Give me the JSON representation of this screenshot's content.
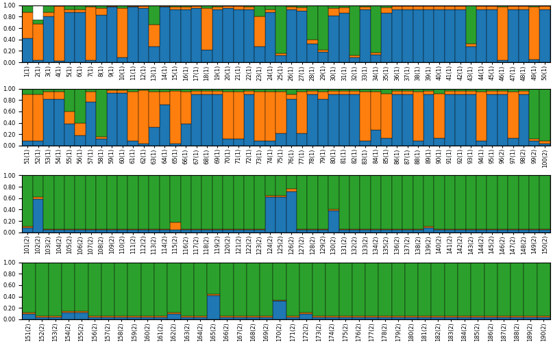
{
  "chart_data": [
    {
      "type": "bar",
      "stacked": true,
      "grid": false,
      "categories": [
        "1(1)",
        "2(1)",
        "3(1)",
        "4(1)",
        "5(1)",
        "6(1)",
        "7(1)",
        "8(1)",
        "9(1)",
        "10(1)",
        "11(1)",
        "12(1)",
        "13(1)",
        "14(1)",
        "15(1)",
        "16(1)",
        "17(1)",
        "18(1)",
        "19(1)",
        "20(1)",
        "21(1)",
        "22(1)",
        "23(1)",
        "24(1)",
        "25(1)",
        "26(1)",
        "27(1)",
        "28(1)",
        "29(1)",
        "30(1)",
        "31(1)",
        "32(1)",
        "33(1)",
        "34(1)",
        "35(1)",
        "36(1)",
        "37(1)",
        "38(1)",
        "39(1)",
        "40(1)",
        "41(1)",
        "42(1)",
        "43(1)",
        "44(1)",
        "45(1)",
        "46(1)",
        "47(1)",
        "48(1)",
        "49(1)",
        "50(1)"
      ],
      "series": [
        {
          "values": [
            0.42,
            0.04,
            0.8,
            0.03,
            0.88,
            0.88,
            0.04,
            0.83,
            0.97,
            0.08,
            0.97,
            0.95,
            0.28,
            0.97,
            0.93,
            0.93,
            0.95,
            0.22,
            0.93,
            0.95,
            0.92,
            0.92,
            0.28,
            0.88,
            0.12,
            0.92,
            0.9,
            0.32,
            0.18,
            0.82,
            0.87,
            0.08,
            0.92,
            0.13,
            0.87,
            0.93,
            0.93,
            0.93,
            0.93,
            0.93,
            0.93,
            0.93,
            0.28,
            0.93,
            0.93,
            0.04,
            0.93,
            0.93,
            0.05,
            0.93
          ]
        },
        {
          "values": [
            0.46,
            0.63,
            0.08,
            0.95,
            0.05,
            0.05,
            0.93,
            0.12,
            0.02,
            0.87,
            0.02,
            0.03,
            0.38,
            0.02,
            0.04,
            0.04,
            0.03,
            0.73,
            0.04,
            0.03,
            0.06,
            0.05,
            0.52,
            0.04,
            0.04,
            0.05,
            0.06,
            0.08,
            0.04,
            0.13,
            0.09,
            0.04,
            0.05,
            0.04,
            0.09,
            0.05,
            0.05,
            0.05,
            0.05,
            0.05,
            0.05,
            0.05,
            0.04,
            0.05,
            0.05,
            0.93,
            0.05,
            0.05,
            0.92,
            0.05
          ]
        },
        {
          "values": [
            0.12,
            0.08,
            0.12,
            0.02,
            0.07,
            0.07,
            0.03,
            0.05,
            0.01,
            0.05,
            0.01,
            0.02,
            0.34,
            0.01,
            0.03,
            0.03,
            0.02,
            0.05,
            0.03,
            0.02,
            0.02,
            0.03,
            0.2,
            0.08,
            0.84,
            0.03,
            0.04,
            0.6,
            0.78,
            0.05,
            0.04,
            0.88,
            0.03,
            0.83,
            0.04,
            0.02,
            0.02,
            0.02,
            0.02,
            0.02,
            0.02,
            0.02,
            0.68,
            0.02,
            0.02,
            0.03,
            0.02,
            0.02,
            0.03,
            0.02
          ]
        }
      ],
      "ylim": [
        0.0,
        1.0
      ],
      "yticks": [
        {
          "value": 0.0,
          "label": "0.00"
        },
        {
          "value": 0.2,
          "label": "0.20"
        },
        {
          "value": 0.4,
          "label": "0.40"
        },
        {
          "value": 0.6,
          "label": "0.60"
        },
        {
          "value": 0.8,
          "label": "0.80"
        },
        {
          "value": 1.0,
          "label": "1.00"
        }
      ]
    },
    {
      "type": "bar",
      "stacked": true,
      "grid": false,
      "categories": [
        "51(1)",
        "52(1)",
        "53(1)",
        "54(1)",
        "55(1)",
        "56(1)",
        "57(1)",
        "58(1)",
        "59(1)",
        "60(1)",
        "61(1)",
        "62(1)",
        "63(1)",
        "64(1)",
        "65(1)",
        "66(1)",
        "67(1)",
        "68(1)",
        "69(1)",
        "70(1)",
        "71(1)",
        "72(1)",
        "73(1)",
        "74(1)",
        "75(1)",
        "76(1)",
        "77(1)",
        "78(1)",
        "79(1)",
        "80(1)",
        "81(1)",
        "82(1)",
        "83(1)",
        "84(1)",
        "85(1)",
        "86(1)",
        "87(1)",
        "88(1)",
        "89(1)",
        "90(1)",
        "91(1)",
        "92(1)",
        "93(1)",
        "94(1)",
        "95(1)",
        "96(2)",
        "97(1)",
        "98(2)",
        "99(2)",
        "100(2)"
      ],
      "series": [
        {
          "values": [
            0.08,
            0.08,
            0.82,
            0.82,
            0.38,
            0.18,
            0.77,
            0.12,
            0.92,
            0.92,
            0.08,
            0.04,
            0.32,
            0.72,
            0.04,
            0.38,
            0.9,
            0.9,
            0.9,
            0.12,
            0.12,
            0.9,
            0.08,
            0.08,
            0.22,
            0.82,
            0.22,
            0.9,
            0.82,
            0.9,
            0.9,
            0.9,
            0.08,
            0.28,
            0.13,
            0.9,
            0.9,
            0.08,
            0.9,
            0.13,
            0.9,
            0.9,
            0.9,
            0.08,
            0.9,
            0.9,
            0.13,
            0.9,
            0.08,
            0.04
          ]
        },
        {
          "values": [
            0.82,
            0.82,
            0.13,
            0.13,
            0.22,
            0.22,
            0.18,
            0.04,
            0.05,
            0.05,
            0.87,
            0.93,
            0.63,
            0.23,
            0.92,
            0.57,
            0.06,
            0.06,
            0.06,
            0.83,
            0.83,
            0.06,
            0.87,
            0.87,
            0.73,
            0.08,
            0.73,
            0.06,
            0.13,
            0.06,
            0.06,
            0.06,
            0.87,
            0.67,
            0.78,
            0.06,
            0.06,
            0.87,
            0.06,
            0.78,
            0.06,
            0.06,
            0.06,
            0.87,
            0.06,
            0.06,
            0.82,
            0.06,
            0.04,
            0.04
          ]
        },
        {
          "values": [
            0.1,
            0.1,
            0.05,
            0.05,
            0.4,
            0.6,
            0.05,
            0.84,
            0.03,
            0.03,
            0.05,
            0.03,
            0.05,
            0.05,
            0.04,
            0.05,
            0.04,
            0.04,
            0.04,
            0.05,
            0.05,
            0.04,
            0.05,
            0.05,
            0.05,
            0.1,
            0.05,
            0.04,
            0.05,
            0.04,
            0.04,
            0.04,
            0.05,
            0.05,
            0.09,
            0.04,
            0.04,
            0.05,
            0.04,
            0.09,
            0.04,
            0.04,
            0.04,
            0.05,
            0.04,
            0.04,
            0.05,
            0.04,
            0.88,
            0.92
          ]
        }
      ],
      "ylim": [
        0.0,
        1.0
      ],
      "yticks": [
        {
          "value": 0.0,
          "label": "0.00"
        },
        {
          "value": 0.2,
          "label": "0.20"
        },
        {
          "value": 0.4,
          "label": "0.40"
        },
        {
          "value": 0.6,
          "label": "0.60"
        },
        {
          "value": 0.8,
          "label": "0.80"
        },
        {
          "value": 1.0,
          "label": "1.00"
        }
      ]
    },
    {
      "type": "bar",
      "stacked": true,
      "grid": false,
      "categories": [
        "101(2)",
        "102(2)",
        "103(2)",
        "104(2)",
        "105(2)",
        "106(2)",
        "107(2)",
        "108(2)",
        "109(2)",
        "110(2)",
        "111(2)",
        "112(2)",
        "113(2)",
        "114(2)",
        "115(2)",
        "116(2)",
        "117(2)",
        "118(2)",
        "119(2)",
        "120(2)",
        "121(2)",
        "122(2)",
        "123(2)",
        "124(2)",
        "125(2)",
        "126(2)",
        "127(2)",
        "128(2)",
        "129(2)",
        "130(2)",
        "131(2)",
        "132(2)",
        "133(2)",
        "134(2)",
        "135(2)",
        "136(2)",
        "137(2)",
        "138(2)",
        "139(2)",
        "140(2)",
        "141(2)",
        "142(2)",
        "143(2)",
        "144(2)",
        "145(2)",
        "146(2)",
        "147(2)",
        "148(2)",
        "149(2)",
        "150(2)"
      ],
      "series": [
        {
          "values": [
            0.08,
            0.58,
            0.04,
            0.04,
            0.04,
            0.04,
            0.04,
            0.04,
            0.04,
            0.04,
            0.04,
            0.04,
            0.04,
            0.04,
            0.04,
            0.04,
            0.04,
            0.04,
            0.04,
            0.04,
            0.04,
            0.04,
            0.04,
            0.62,
            0.62,
            0.72,
            0.04,
            0.04,
            0.04,
            0.38,
            0.04,
            0.04,
            0.04,
            0.04,
            0.04,
            0.04,
            0.04,
            0.04,
            0.08,
            0.04,
            0.04,
            0.04,
            0.04,
            0.04,
            0.04,
            0.04,
            0.04,
            0.04,
            0.04,
            0.04
          ]
        },
        {
          "values": [
            0.02,
            0.04,
            0.02,
            0.02,
            0.02,
            0.02,
            0.02,
            0.02,
            0.02,
            0.02,
            0.02,
            0.02,
            0.02,
            0.02,
            0.14,
            0.02,
            0.02,
            0.02,
            0.02,
            0.02,
            0.02,
            0.02,
            0.02,
            0.02,
            0.02,
            0.04,
            0.02,
            0.02,
            0.02,
            0.02,
            0.02,
            0.02,
            0.02,
            0.02,
            0.02,
            0.02,
            0.02,
            0.02,
            0.02,
            0.02,
            0.02,
            0.02,
            0.02,
            0.02,
            0.02,
            0.02,
            0.02,
            0.02,
            0.02,
            0.02
          ]
        },
        {
          "values": [
            0.9,
            0.38,
            0.94,
            0.94,
            0.94,
            0.94,
            0.94,
            0.94,
            0.94,
            0.94,
            0.94,
            0.94,
            0.94,
            0.94,
            0.82,
            0.94,
            0.94,
            0.94,
            0.94,
            0.94,
            0.94,
            0.94,
            0.94,
            0.36,
            0.36,
            0.24,
            0.94,
            0.94,
            0.94,
            0.6,
            0.94,
            0.94,
            0.94,
            0.94,
            0.94,
            0.94,
            0.94,
            0.94,
            0.9,
            0.94,
            0.94,
            0.94,
            0.94,
            0.94,
            0.94,
            0.94,
            0.94,
            0.94,
            0.94,
            0.94
          ]
        }
      ],
      "ylim": [
        0.0,
        1.0
      ],
      "yticks": [
        {
          "value": 0.0,
          "label": "0.00"
        },
        {
          "value": 0.2,
          "label": "0.20"
        },
        {
          "value": 0.4,
          "label": "0.40"
        },
        {
          "value": 0.6,
          "label": "0.60"
        },
        {
          "value": 0.8,
          "label": "0.80"
        },
        {
          "value": 1.0,
          "label": "1.00"
        }
      ]
    },
    {
      "type": "bar",
      "stacked": true,
      "grid": false,
      "categories": [
        "151(2)",
        "152(2)",
        "153(2)",
        "154(2)",
        "155(2)",
        "156(2)",
        "157(2)",
        "158(2)",
        "159(2)",
        "160(2)",
        "161(2)",
        "162(2)",
        "163(2)",
        "164(2)",
        "165(2)",
        "166(2)",
        "167(2)",
        "168(2)",
        "169(2)",
        "170(2)",
        "171(2)",
        "172(2)",
        "173(2)",
        "174(2)",
        "175(2)",
        "176(2)",
        "177(2)",
        "178(2)",
        "179(2)",
        "180(2)",
        "181(2)",
        "182(2)",
        "183(2)",
        "184(2)",
        "185(2)",
        "186(2)",
        "187(2)",
        "188(2)",
        "189(2)",
        "190(2)"
      ],
      "series": [
        {
          "values": [
            0.1,
            0.04,
            0.04,
            0.12,
            0.12,
            0.04,
            0.04,
            0.04,
            0.04,
            0.04,
            0.04,
            0.1,
            0.04,
            0.04,
            0.42,
            0.04,
            0.04,
            0.04,
            0.04,
            0.32,
            0.04,
            0.1,
            0.04,
            0.04,
            0.04,
            0.04,
            0.04,
            0.04,
            0.04,
            0.04,
            0.04,
            0.04,
            0.04,
            0.04,
            0.04,
            0.04,
            0.04,
            0.04,
            0.04,
            0.04
          ]
        },
        {
          "values": [
            0.02,
            0.02,
            0.02,
            0.02,
            0.02,
            0.02,
            0.02,
            0.02,
            0.02,
            0.02,
            0.02,
            0.02,
            0.02,
            0.02,
            0.02,
            0.02,
            0.02,
            0.02,
            0.02,
            0.02,
            0.02,
            0.02,
            0.02,
            0.02,
            0.02,
            0.02,
            0.02,
            0.02,
            0.02,
            0.02,
            0.02,
            0.02,
            0.02,
            0.02,
            0.02,
            0.02,
            0.02,
            0.02,
            0.02,
            0.02
          ]
        },
        {
          "values": [
            0.88,
            0.94,
            0.94,
            0.86,
            0.86,
            0.94,
            0.94,
            0.94,
            0.94,
            0.94,
            0.94,
            0.88,
            0.94,
            0.94,
            0.56,
            0.94,
            0.94,
            0.94,
            0.94,
            0.66,
            0.94,
            0.88,
            0.94,
            0.94,
            0.94,
            0.94,
            0.94,
            0.94,
            0.94,
            0.94,
            0.94,
            0.94,
            0.94,
            0.94,
            0.94,
            0.94,
            0.94,
            0.94,
            0.94,
            0.94
          ]
        }
      ],
      "ylim": [
        0.0,
        1.0
      ],
      "yticks": [
        {
          "value": 0.0,
          "label": "0.00"
        },
        {
          "value": 0.2,
          "label": "0.20"
        },
        {
          "value": 0.4,
          "label": "0.40"
        },
        {
          "value": 0.6,
          "label": "0.60"
        },
        {
          "value": 0.8,
          "label": "0.80"
        },
        {
          "value": 1.0,
          "label": "1.00"
        }
      ]
    }
  ]
}
